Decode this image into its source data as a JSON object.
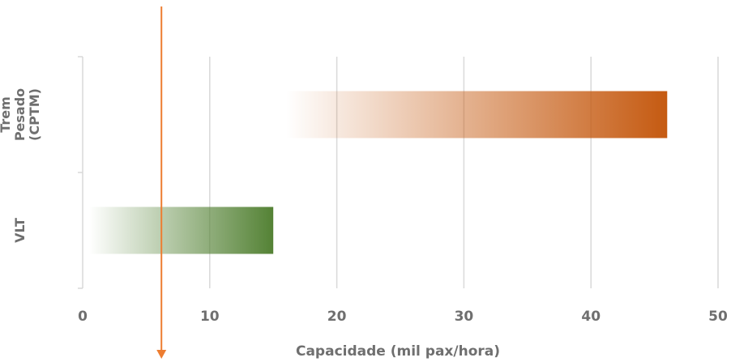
{
  "chart_data": {
    "type": "bar",
    "orientation": "horizontal",
    "categories": [
      {
        "name": "Trem Pesado (CPTM)",
        "lines": [
          "Trem",
          "Pesado",
          "(CPTM)"
        ],
        "start": 16,
        "end": 46,
        "color": "#c55a11"
      },
      {
        "name": "VLT",
        "lines": [
          "VLT"
        ],
        "start": 0.5,
        "end": 15,
        "color": "#548235"
      }
    ],
    "xlabel": "Capacidade (mil pax/hora)",
    "xlim": [
      0,
      50
    ],
    "xticks": [
      0,
      10,
      20,
      30,
      40,
      50
    ],
    "grid": true,
    "reference_line": {
      "x": 6.2,
      "color": "#ed7d31",
      "direction": "down"
    }
  }
}
